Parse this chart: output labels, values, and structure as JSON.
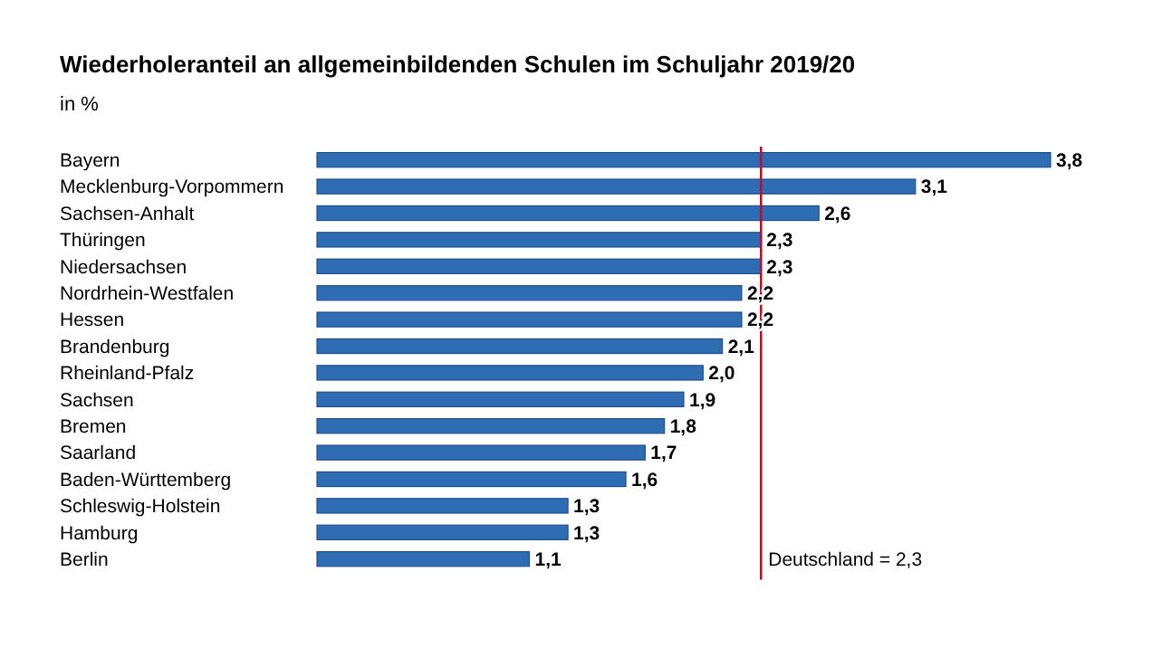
{
  "chart_data": {
    "type": "bar",
    "orientation": "horizontal",
    "title": "Wiederholeranteil an allgemeinbildenden Schulen im Schuljahr 2019/20",
    "subtitle": "in %",
    "categories": [
      "Bayern",
      "Mecklenburg-Vorpommern",
      "Sachsen-Anhalt",
      "Thüringen",
      "Niedersachsen",
      "Nordrhein-Westfalen",
      "Hessen",
      "Brandenburg",
      "Rheinland-Pfalz",
      "Sachsen",
      "Bremen",
      "Saarland",
      "Baden-Württemberg",
      "Schleswig-Holstein",
      "Hamburg",
      "Berlin"
    ],
    "values": [
      3.8,
      3.1,
      2.6,
      2.3,
      2.3,
      2.2,
      2.2,
      2.1,
      2.0,
      1.9,
      1.8,
      1.7,
      1.6,
      1.3,
      1.3,
      1.1
    ],
    "value_labels": [
      "3,8",
      "3,1",
      "2,6",
      "2,3",
      "2,3",
      "2,2",
      "2,2",
      "2,1",
      "2,0",
      "1,9",
      "1,8",
      "1,7",
      "1,6",
      "1,3",
      "1,3",
      "1,1"
    ],
    "color": "#2e6db4",
    "ref_lines": [
      {
        "axis": "x",
        "value": 2.3,
        "label": "Deutschland = 2,3",
        "color": "#e3001b"
      }
    ]
  }
}
